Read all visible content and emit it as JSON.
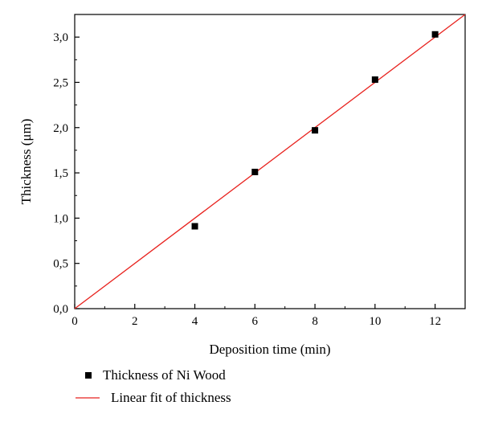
{
  "chart_data": {
    "type": "scatter",
    "xlabel": "Deposition time (min)",
    "ylabel": "Thickness (μm)",
    "xlim": [
      0,
      13
    ],
    "ylim": [
      0,
      3.25
    ],
    "x_ticks": [
      "0",
      "2",
      "4",
      "6",
      "8",
      "10",
      "12"
    ],
    "y_ticks": [
      "0,0",
      "0,5",
      "1,0",
      "1,5",
      "2,0",
      "2,5",
      "3,0"
    ],
    "grid": false,
    "legend_position": "bottom",
    "series": [
      {
        "name": "Thickness of Ni Wood",
        "kind": "scatter",
        "color": "#000000",
        "marker": "square",
        "x": [
          4,
          6,
          8,
          10,
          12
        ],
        "y": [
          0.91,
          1.51,
          1.97,
          2.53,
          3.03
        ]
      },
      {
        "name": "Linear fit of thickness",
        "kind": "line",
        "color": "#e8221e",
        "x": [
          0,
          13
        ],
        "y": [
          0,
          3.25
        ]
      }
    ]
  }
}
